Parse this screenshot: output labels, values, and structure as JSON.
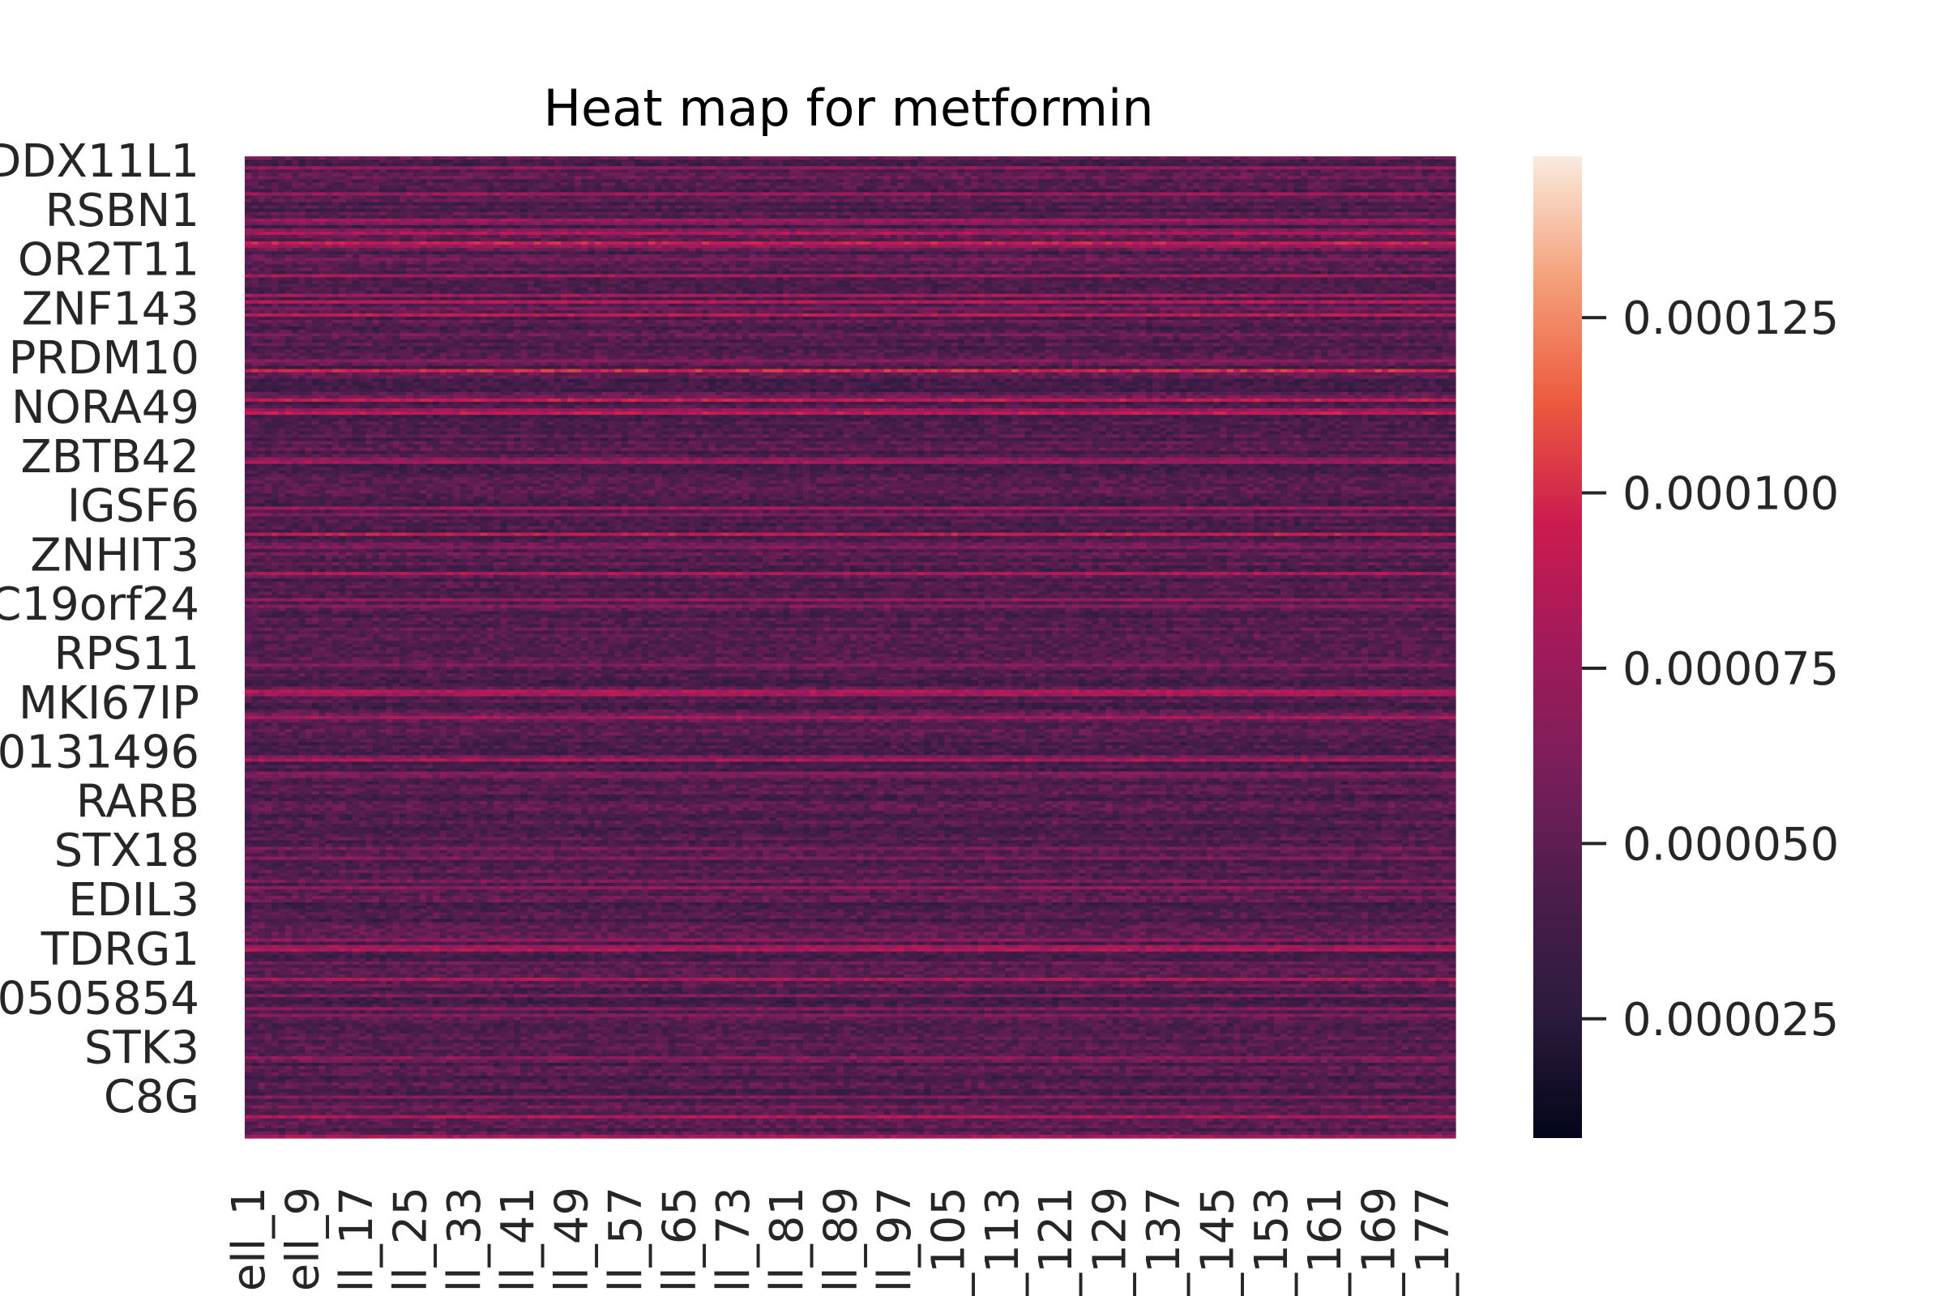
{
  "chart_data": {
    "type": "heatmap",
    "title": "Heat map for metformin",
    "xlabel": "",
    "ylabel": "",
    "grid": false,
    "n_columns": 180,
    "y_tick_labels": [
      "DDX11L1",
      "RSBN1",
      "OR2T11",
      "ZNF143",
      "PRDM10",
      "NORA49",
      "ZBTB42",
      "IGSF6",
      "ZNHIT3",
      "C19orf24",
      "RPS11",
      "MKI67IP",
      "0131496",
      "RARB",
      "STX18",
      "EDIL3",
      "TDRG1",
      "0505854",
      "STK3",
      "C8G"
    ],
    "x_tick_labels": [
      "ell_1",
      "ell_9",
      "ll_17",
      "ll_25",
      "ll_33",
      "ll_41",
      "ll_49",
      "ll_57",
      "ll_65",
      "ll_73",
      "ll_81",
      "ll_89",
      "ll_97",
      "_105",
      "_113",
      "_121",
      "_129",
      "_137",
      "_145",
      "_153",
      "_161",
      "_169",
      "_177"
    ],
    "colorbar": {
      "colormap": "rocket",
      "range": [
        8e-06,
        0.000148
      ],
      "ticks": [
        2.5e-05,
        5e-05,
        7.5e-05,
        0.0001,
        0.000125
      ],
      "tick_labels": [
        "0.000025",
        "0.000050",
        "0.000075",
        "0.000100",
        "0.000125"
      ]
    },
    "typical_value": 4.5e-05
  }
}
